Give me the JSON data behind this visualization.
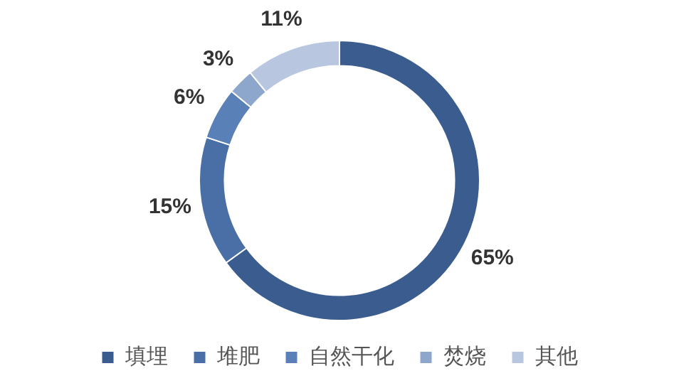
{
  "chart_data": {
    "type": "donut",
    "categories": [
      "填埋",
      "堆肥",
      "自然干化",
      "焚烧",
      "其他"
    ],
    "values": [
      65,
      15,
      6,
      3,
      11
    ],
    "value_labels": [
      "65%",
      "15%",
      "6%",
      "3%",
      "11%"
    ],
    "colors": [
      "#3b5c8f",
      "#4a6fa6",
      "#5a80b8",
      "#8da6cc",
      "#b8c6e0"
    ],
    "legend": "bottom"
  }
}
